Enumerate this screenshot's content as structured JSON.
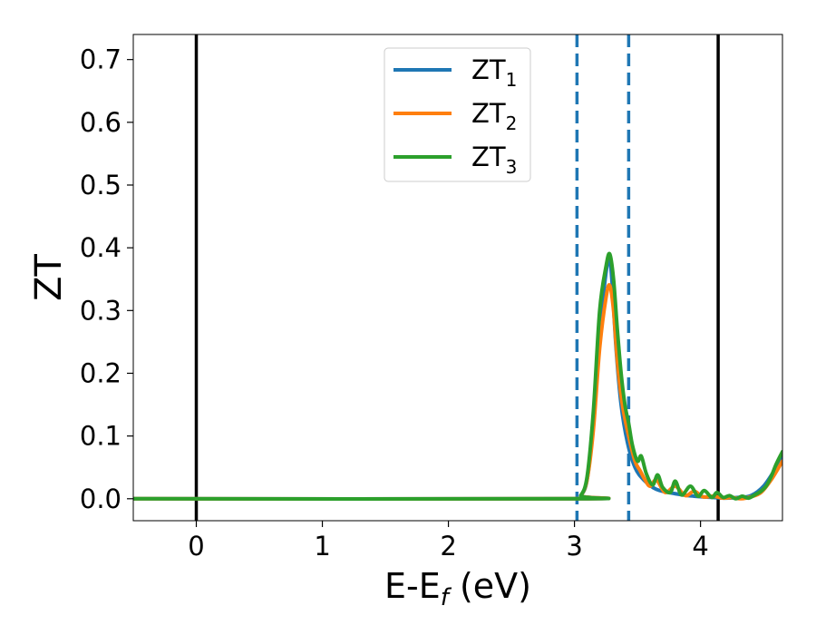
{
  "chart_data": {
    "type": "line",
    "title": "",
    "xlabel": "E-E",
    "xlabel_sub": "f",
    "xlabel_unit": " (eV)",
    "ylabel": "ZT",
    "xlim": [
      -0.5,
      4.65
    ],
    "ylim": [
      -0.035,
      0.74
    ],
    "xticks": [
      0,
      1,
      2,
      3,
      4
    ],
    "yticks": [
      0.0,
      0.1,
      0.2,
      0.3,
      0.4,
      0.5,
      0.6,
      0.7
    ],
    "x_tick_labels": [
      "0",
      "1",
      "2",
      "3",
      "4"
    ],
    "y_tick_labels": [
      "0.0",
      "0.1",
      "0.2",
      "0.3",
      "0.4",
      "0.5",
      "0.6",
      "0.7"
    ],
    "grid": false,
    "legend_position": "upper-center",
    "vlines": [
      {
        "x": 0.0,
        "style": "solid",
        "color": "#000000"
      },
      {
        "x": 4.14,
        "style": "solid",
        "color": "#000000"
      },
      {
        "x": 3.02,
        "style": "dashed",
        "color": "#1f77b4"
      },
      {
        "x": 3.43,
        "style": "dashed",
        "color": "#1f77b4"
      }
    ],
    "series": [
      {
        "name": "ZT",
        "subscript": "1",
        "color": "#1f77b4",
        "x": [
          -0.5,
          3.0,
          3.05,
          3.1,
          3.15,
          3.2,
          3.25,
          3.28,
          3.3,
          3.33,
          3.37,
          3.42,
          3.48,
          3.55,
          3.65,
          3.8,
          3.95,
          4.1,
          4.2,
          4.3,
          4.4,
          4.5,
          4.6,
          4.65
        ],
        "y": [
          0.0,
          0.0,
          0.005,
          0.03,
          0.12,
          0.26,
          0.36,
          0.38,
          0.34,
          0.24,
          0.15,
          0.09,
          0.05,
          0.03,
          0.015,
          0.008,
          0.004,
          0.002,
          0.001,
          0.002,
          0.005,
          0.02,
          0.05,
          0.07
        ]
      },
      {
        "name": "ZT",
        "subscript": "2",
        "color": "#ff7f0e",
        "x": [
          -0.5,
          3.0,
          3.05,
          3.1,
          3.15,
          3.2,
          3.25,
          3.28,
          3.31,
          3.34,
          3.38,
          3.43,
          3.48,
          3.52,
          3.56,
          3.6,
          3.65,
          3.72,
          3.8,
          3.88,
          3.95,
          4.02,
          4.1,
          4.18,
          4.25,
          4.32,
          4.4,
          4.48,
          4.56,
          4.65
        ],
        "y": [
          0.0,
          0.0,
          0.005,
          0.03,
          0.11,
          0.24,
          0.32,
          0.34,
          0.3,
          0.22,
          0.15,
          0.1,
          0.06,
          0.045,
          0.03,
          0.02,
          0.03,
          0.01,
          0.02,
          0.005,
          0.012,
          0.003,
          0.004,
          0.001,
          0.002,
          0.0,
          0.003,
          0.01,
          0.03,
          0.06
        ]
      },
      {
        "name": "ZT",
        "subscript": "3",
        "color": "#2ca02c",
        "x": [
          -0.5,
          3.0,
          3.05,
          3.1,
          3.15,
          3.2,
          3.25,
          3.28,
          3.31,
          3.34,
          3.37,
          3.4,
          3.43,
          3.46,
          3.5,
          3.53,
          3.57,
          3.62,
          3.66,
          3.7,
          3.76,
          3.8,
          3.85,
          3.92,
          3.98,
          4.03,
          4.09,
          4.13,
          4.18,
          4.23,
          4.28,
          4.33,
          4.38,
          4.43,
          4.48,
          4.52,
          4.56,
          4.6,
          4.65
        ],
        "y": [
          0.0,
          0.0,
          0.005,
          0.035,
          0.14,
          0.3,
          0.37,
          0.39,
          0.35,
          0.27,
          0.2,
          0.15,
          0.12,
          0.085,
          0.06,
          0.068,
          0.04,
          0.022,
          0.038,
          0.018,
          0.01,
          0.028,
          0.006,
          0.02,
          0.004,
          0.013,
          0.002,
          0.01,
          0.002,
          0.005,
          0.0,
          0.004,
          0.001,
          0.006,
          0.012,
          0.02,
          0.035,
          0.055,
          0.075
        ]
      }
    ]
  }
}
